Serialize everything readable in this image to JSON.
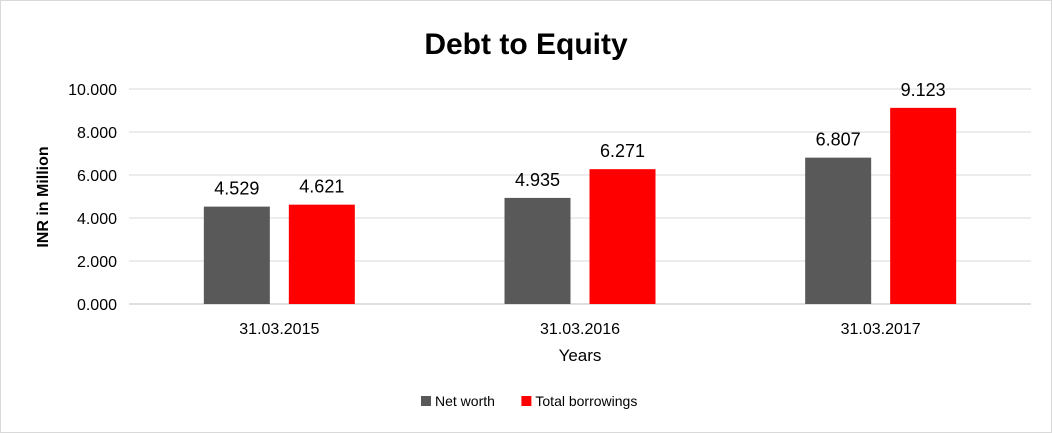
{
  "chart_data": {
    "type": "bar",
    "title": "Debt to Equity",
    "xlabel": "Years",
    "ylabel": "INR in Million",
    "categories": [
      "31.03.2015",
      "31.03.2016",
      "31.03.2017"
    ],
    "series": [
      {
        "name": "Net worth",
        "values": [
          4.529,
          4.935,
          6.807
        ],
        "value_labels": [
          "4.529",
          "4.935",
          "6.807"
        ],
        "color": "#595959"
      },
      {
        "name": "Total borrowings",
        "values": [
          4.621,
          6.271,
          9.123
        ],
        "value_labels": [
          "4.621",
          "6.271",
          "9.123"
        ],
        "color": "#ff0000"
      }
    ],
    "ylim": [
      0,
      10
    ],
    "yticks": [
      0,
      2,
      4,
      6,
      8,
      10
    ],
    "ytick_labels": [
      "0.000",
      "2.000",
      "4.000",
      "6.000",
      "8.000",
      "10.000"
    ],
    "grid": true,
    "legend": "bottom",
    "colors": {
      "gridline": "#d9d9d9",
      "axis": "#bfbfbf"
    }
  }
}
